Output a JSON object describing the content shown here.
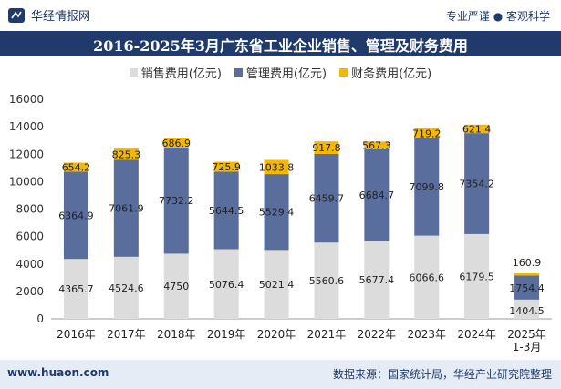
{
  "header": {
    "brand": "华经情报网",
    "tagline": "专业严谨 ● 客观科学"
  },
  "footer": {
    "website": "www.huaon.com",
    "source": "数据来源：国家统计局，华经产业研究院整理"
  },
  "colors": {
    "sales": "#dcdcdc",
    "admin": "#5a6e9e",
    "finance": "#f5b800",
    "titlebar": "#1f3a6b"
  },
  "chart_data": {
    "type": "bar",
    "stacked": true,
    "title": "2016-2025年3月广东省工业企业销售、管理及财务费用",
    "categories": [
      "2016年",
      "2017年",
      "2018年",
      "2019年",
      "2020年",
      "2021年",
      "2022年",
      "2023年",
      "2024年",
      "2025年\n1-3月"
    ],
    "series": [
      {
        "name": "销售费用(亿元)",
        "values": [
          4365.7,
          4524.6,
          4750,
          5076.4,
          5021.4,
          5560.6,
          5677.4,
          6066.6,
          6179.5,
          1404.5
        ]
      },
      {
        "name": "管理费用(亿元)",
        "values": [
          6364.9,
          7061.9,
          7732.2,
          5644.5,
          5529.4,
          6459.7,
          6684.7,
          7099.8,
          7354.2,
          1754.4
        ]
      },
      {
        "name": "财务费用(亿元)",
        "values": [
          654.2,
          825.3,
          686.9,
          725.9,
          1033.8,
          917.8,
          567.3,
          719.2,
          621.4,
          160.9
        ]
      }
    ],
    "yticks": [
      0,
      2000,
      4000,
      6000,
      8000,
      10000,
      12000,
      14000,
      16000
    ],
    "ylim": [
      0,
      16000
    ],
    "legend_position": "top",
    "grid": false
  }
}
